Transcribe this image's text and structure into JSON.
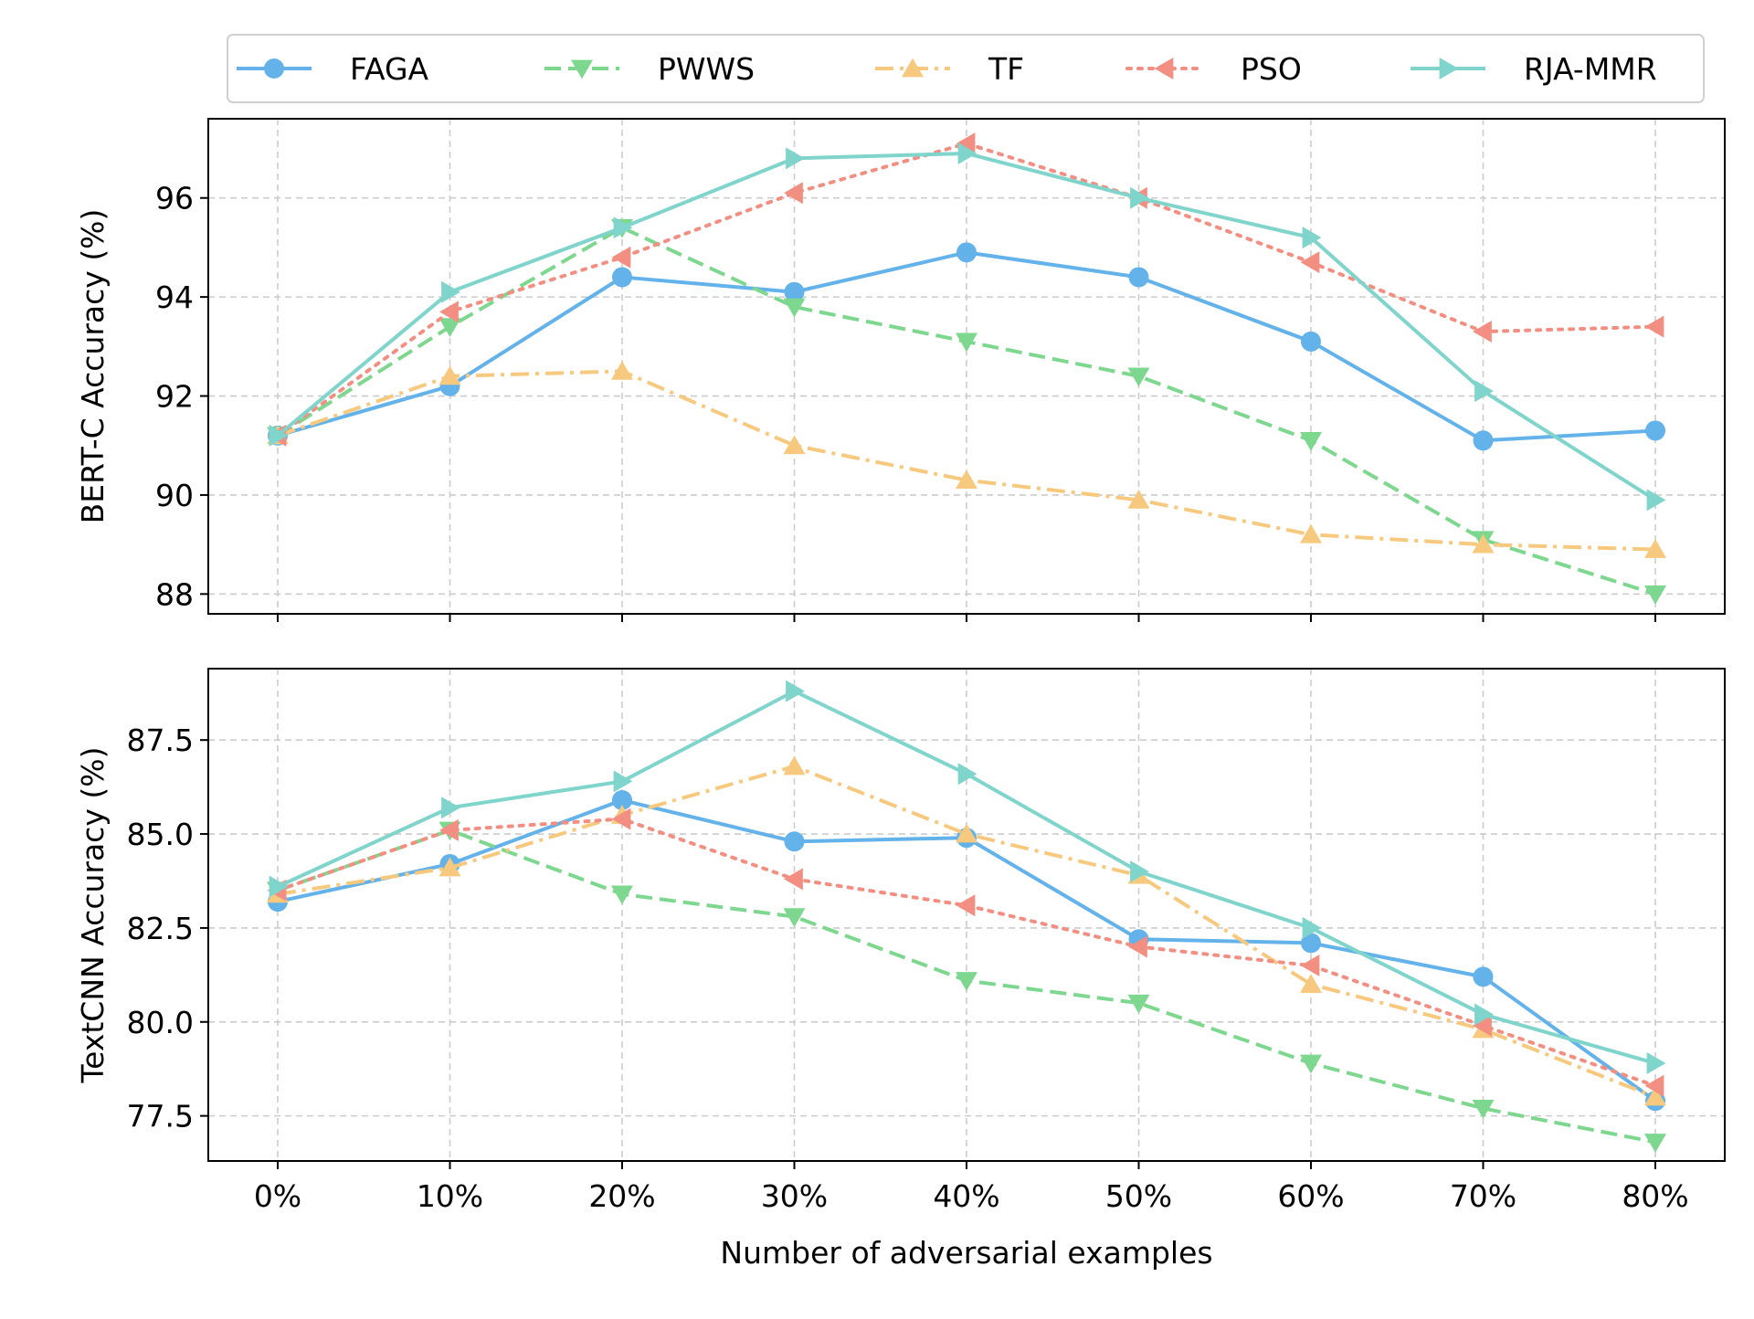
{
  "legend_title": "",
  "chart_data": [
    {
      "type": "line",
      "title": "",
      "xlabel": "",
      "ylabel": "BERT-C Accuracy (%)",
      "categories": [
        "0%",
        "10%",
        "20%",
        "30%",
        "40%",
        "50%",
        "60%",
        "70%",
        "80%"
      ],
      "ylim": [
        87.6,
        97.6
      ],
      "yticks": [
        88,
        90,
        92,
        94,
        96
      ],
      "ytick_labels": [
        "88",
        "90",
        "92",
        "94",
        "96"
      ],
      "grid": true,
      "series": [
        {
          "name": "FAGA",
          "color": "#63b2ea",
          "dash": "solid",
          "marker": "circle",
          "values": [
            91.2,
            92.2,
            94.4,
            94.1,
            94.9,
            94.4,
            93.1,
            91.1,
            91.3
          ]
        },
        {
          "name": "PWWS",
          "color": "#7ed78f",
          "dash": "dashed",
          "marker": "triangle-down",
          "values": [
            91.2,
            93.4,
            95.4,
            93.8,
            93.1,
            92.4,
            91.1,
            89.1,
            88.0
          ]
        },
        {
          "name": "TF",
          "color": "#f7c97e",
          "dash": "dashdot",
          "marker": "triangle-up",
          "values": [
            91.2,
            92.4,
            92.5,
            91.0,
            90.3,
            89.9,
            89.2,
            89.0,
            88.9
          ]
        },
        {
          "name": "PSO",
          "color": "#f28f82",
          "dash": "dotted",
          "marker": "triangle-left",
          "values": [
            91.2,
            93.7,
            94.8,
            96.1,
            97.1,
            96.0,
            94.7,
            93.3,
            93.4
          ]
        },
        {
          "name": "RJA-MMR",
          "color": "#7fd4cb",
          "dash": "solid",
          "marker": "triangle-right",
          "values": [
            91.2,
            94.1,
            95.4,
            96.8,
            96.9,
            96.0,
            95.2,
            92.1,
            89.9
          ]
        }
      ]
    },
    {
      "type": "line",
      "title": "",
      "xlabel": "Number of adversarial examples",
      "ylabel": "TextCNN Accuracy (%)",
      "categories": [
        "0%",
        "10%",
        "20%",
        "30%",
        "40%",
        "50%",
        "60%",
        "70%",
        "80%"
      ],
      "ylim": [
        76.3,
        89.4
      ],
      "yticks": [
        77.5,
        80.0,
        82.5,
        85.0,
        87.5
      ],
      "ytick_labels": [
        "77.5",
        "80.0",
        "82.5",
        "85.0",
        "87.5"
      ],
      "grid": true,
      "series": [
        {
          "name": "FAGA",
          "color": "#63b2ea",
          "dash": "solid",
          "marker": "circle",
          "values": [
            83.2,
            84.2,
            85.9,
            84.8,
            84.9,
            82.2,
            82.1,
            81.2,
            77.9
          ]
        },
        {
          "name": "PWWS",
          "color": "#7ed78f",
          "dash": "dashed",
          "marker": "triangle-down",
          "values": [
            83.5,
            85.1,
            83.4,
            82.8,
            81.1,
            80.5,
            78.9,
            77.7,
            76.8
          ]
        },
        {
          "name": "TF",
          "color": "#f7c97e",
          "dash": "dashdot",
          "marker": "triangle-up",
          "values": [
            83.4,
            84.1,
            85.5,
            86.8,
            85.0,
            83.9,
            81.0,
            79.8,
            78.0
          ]
        },
        {
          "name": "PSO",
          "color": "#f28f82",
          "dash": "dotted",
          "marker": "triangle-left",
          "values": [
            83.5,
            85.1,
            85.4,
            83.8,
            83.1,
            82.0,
            81.5,
            79.9,
            78.3
          ]
        },
        {
          "name": "RJA-MMR",
          "color": "#7fd4cb",
          "dash": "solid",
          "marker": "triangle-right",
          "values": [
            83.6,
            85.7,
            86.4,
            88.8,
            86.6,
            84.0,
            82.5,
            80.2,
            78.9
          ]
        }
      ]
    }
  ]
}
